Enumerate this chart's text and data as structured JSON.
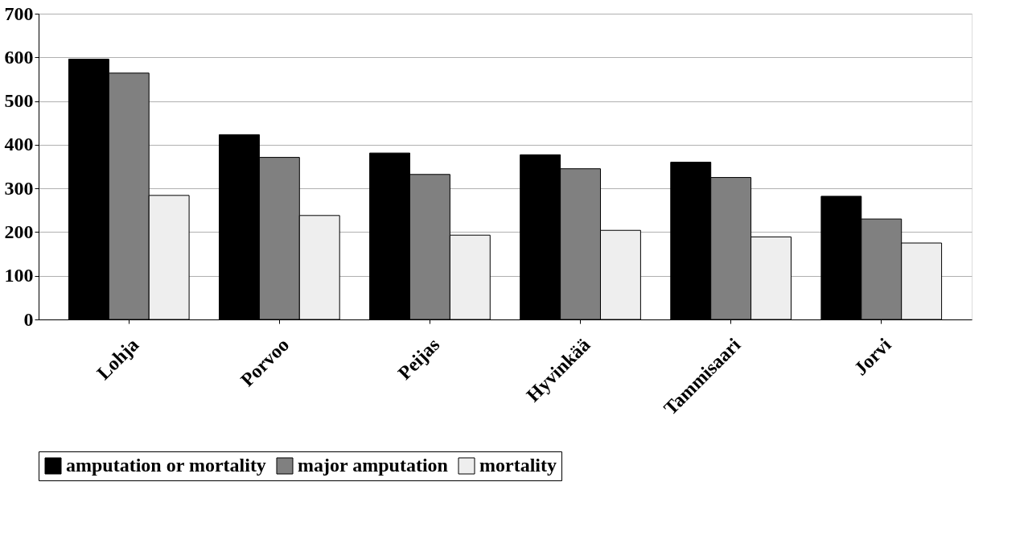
{
  "chart_data": {
    "type": "bar",
    "categories": [
      "Lohja",
      "Porvoo",
      "Peijas",
      "Hyvinkää",
      "Tammisaari",
      "Jorvi"
    ],
    "series": [
      {
        "name": "amputation or mortality",
        "color": "#000000",
        "values": [
          596,
          423,
          381,
          377,
          360,
          282
        ]
      },
      {
        "name": "major amputation",
        "color": "#808080",
        "values": [
          564,
          371,
          332,
          345,
          325,
          230
        ]
      },
      {
        "name": "mortality",
        "color": "#eeeeee",
        "values": [
          284,
          238,
          193,
          204,
          189,
          175
        ]
      }
    ],
    "ylim": [
      0,
      700
    ],
    "yticks": [
      0,
      100,
      200,
      300,
      400,
      500,
      600,
      700
    ],
    "grid": "y",
    "legend": "bottom"
  }
}
